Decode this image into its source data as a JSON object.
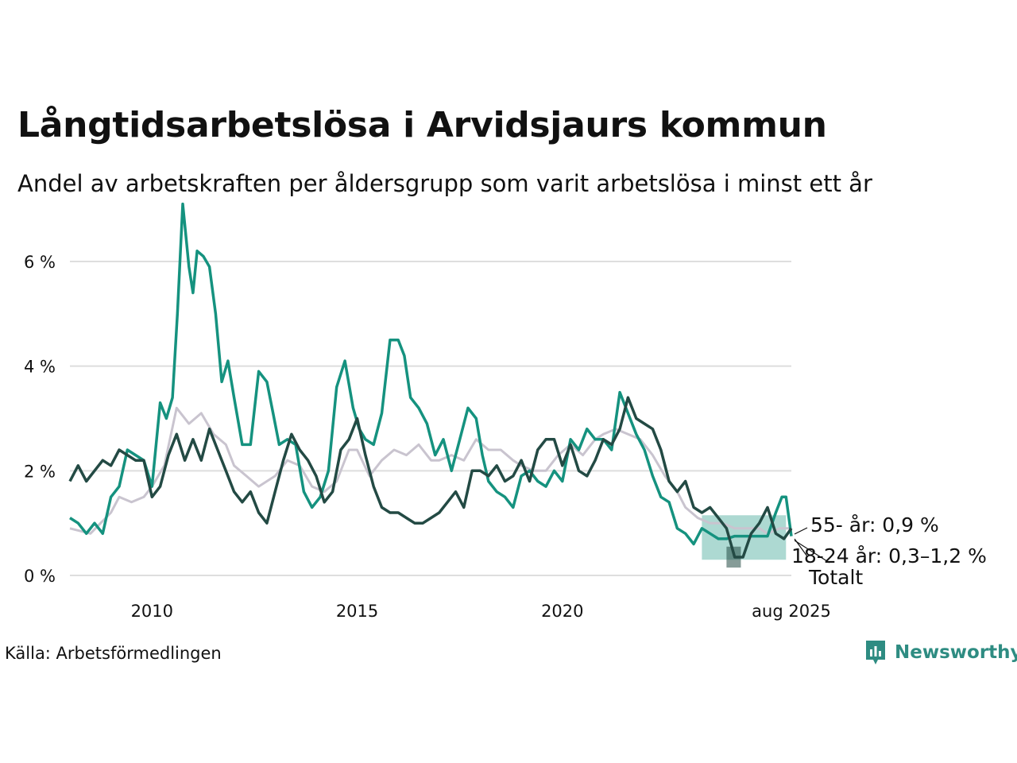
{
  "title": "Långtidsarbetslösa i Arvidsjaurs kommun",
  "subtitle": "Andel av arbetskraften per åldersgrupp som varit arbetslösa i minst ett år",
  "source": "Källa: Arbetsförmedlingen",
  "logo_text": "Newsworthy",
  "colors": {
    "youth": "#15927f",
    "older": "#234a44",
    "total": "#c9c4cf",
    "grid": "#dedede"
  },
  "chart_data": {
    "type": "line",
    "ylim": [
      0,
      7.2
    ],
    "y_ticks": [
      0,
      2,
      4,
      6
    ],
    "y_tick_labels": [
      "0 %",
      "2 %",
      "4 %",
      "6 %"
    ],
    "x_ticks": [
      2010,
      2015,
      2020,
      2025.58
    ],
    "x_tick_labels": [
      "2010",
      "2015",
      "2020",
      "aug 2025"
    ],
    "xlim": [
      2008.0,
      2025.58
    ],
    "series": [
      {
        "key": "total",
        "name": "Totalt",
        "color": "#c9c4cf",
        "x": [
          2008.0,
          2008.5,
          2009.0,
          2009.2,
          2009.5,
          2009.8,
          2010.0,
          2010.3,
          2010.6,
          2010.9,
          2011.2,
          2011.5,
          2011.8,
          2012.0,
          2012.3,
          2012.6,
          2013.0,
          2013.3,
          2013.6,
          2013.9,
          2014.2,
          2014.5,
          2014.8,
          2015.0,
          2015.3,
          2015.6,
          2015.9,
          2016.2,
          2016.5,
          2016.8,
          2017.0,
          2017.3,
          2017.6,
          2017.9,
          2018.2,
          2018.5,
          2018.8,
          2019.0,
          2019.3,
          2019.6,
          2019.9,
          2020.2,
          2020.5,
          2020.8,
          2021.0,
          2021.3,
          2021.6,
          2021.9,
          2022.2,
          2022.5,
          2022.8,
          2023.0,
          2023.3,
          2023.6,
          2023.9,
          2024.2,
          2024.5,
          2024.8,
          2025.0,
          2025.3,
          2025.58
        ],
        "y": [
          0.9,
          0.8,
          1.2,
          1.5,
          1.4,
          1.5,
          1.7,
          2.1,
          3.2,
          2.9,
          3.1,
          2.7,
          2.5,
          2.1,
          1.9,
          1.7,
          1.9,
          2.2,
          2.1,
          1.7,
          1.6,
          1.8,
          2.4,
          2.4,
          1.9,
          2.2,
          2.4,
          2.3,
          2.5,
          2.2,
          2.2,
          2.3,
          2.2,
          2.6,
          2.4,
          2.4,
          2.2,
          2.1,
          2.0,
          2.0,
          2.3,
          2.5,
          2.3,
          2.6,
          2.7,
          2.8,
          2.7,
          2.6,
          2.3,
          1.9,
          1.6,
          1.3,
          1.1,
          1.0,
          1.0,
          0.9,
          0.9,
          0.9,
          0.8,
          0.9,
          0.9
        ]
      },
      {
        "key": "youth",
        "name": "18-24 år",
        "color": "#15927f",
        "x": [
          2008.0,
          2008.2,
          2008.4,
          2008.6,
          2008.8,
          2009.0,
          2009.2,
          2009.4,
          2009.6,
          2009.8,
          2010.0,
          2010.2,
          2010.35,
          2010.5,
          2010.62,
          2010.75,
          2010.9,
          2011.0,
          2011.1,
          2011.25,
          2011.4,
          2011.55,
          2011.7,
          2011.85,
          2012.0,
          2012.2,
          2012.4,
          2012.6,
          2012.8,
          2012.95,
          2013.1,
          2013.3,
          2013.5,
          2013.7,
          2013.9,
          2014.1,
          2014.3,
          2014.5,
          2014.7,
          2014.9,
          2015.05,
          2015.2,
          2015.4,
          2015.6,
          2015.8,
          2016.0,
          2016.15,
          2016.3,
          2016.5,
          2016.7,
          2016.9,
          2017.1,
          2017.3,
          2017.5,
          2017.7,
          2017.9,
          2018.05,
          2018.2,
          2018.4,
          2018.6,
          2018.8,
          2019.0,
          2019.2,
          2019.4,
          2019.6,
          2019.8,
          2020.0,
          2020.2,
          2020.4,
          2020.6,
          2020.8,
          2021.0,
          2021.2,
          2021.4,
          2021.6,
          2021.8,
          2022.0,
          2022.2,
          2022.4,
          2022.6,
          2022.8,
          2023.0,
          2023.2,
          2023.4,
          2023.6,
          2023.8,
          2024.0,
          2024.2,
          2024.4,
          2024.6,
          2024.8,
          2025.0,
          2025.2,
          2025.35,
          2025.45,
          2025.58
        ],
        "y": [
          1.1,
          1.0,
          0.8,
          1.0,
          0.8,
          1.5,
          1.7,
          2.4,
          2.3,
          2.2,
          1.7,
          3.3,
          3.0,
          3.4,
          5.0,
          7.1,
          5.9,
          5.4,
          6.2,
          6.1,
          5.9,
          5.0,
          3.7,
          4.1,
          3.4,
          2.5,
          2.5,
          3.9,
          3.7,
          3.1,
          2.5,
          2.6,
          2.5,
          1.6,
          1.3,
          1.5,
          2.0,
          3.6,
          4.1,
          3.2,
          2.8,
          2.6,
          2.5,
          3.1,
          4.5,
          4.5,
          4.2,
          3.4,
          3.2,
          2.9,
          2.3,
          2.6,
          2.0,
          2.6,
          3.2,
          3.0,
          2.3,
          1.8,
          1.6,
          1.5,
          1.3,
          1.9,
          2.0,
          1.8,
          1.7,
          2.0,
          1.8,
          2.6,
          2.4,
          2.8,
          2.6,
          2.6,
          2.4,
          3.5,
          3.1,
          2.7,
          2.4,
          1.9,
          1.5,
          1.4,
          0.9,
          0.8,
          0.6,
          0.9,
          0.8,
          0.7,
          0.7,
          0.75,
          0.75,
          0.75,
          0.75,
          0.75,
          1.2,
          1.5,
          1.5,
          0.75
        ]
      },
      {
        "key": "older",
        "name": "55- år",
        "color": "#234a44",
        "x": [
          2008.0,
          2008.2,
          2008.4,
          2008.6,
          2008.8,
          2009.0,
          2009.2,
          2009.4,
          2009.6,
          2009.8,
          2010.0,
          2010.2,
          2010.4,
          2010.6,
          2010.8,
          2011.0,
          2011.2,
          2011.4,
          2011.6,
          2011.8,
          2012.0,
          2012.2,
          2012.4,
          2012.6,
          2012.8,
          2013.0,
          2013.2,
          2013.4,
          2013.6,
          2013.8,
          2014.0,
          2014.2,
          2014.4,
          2014.6,
          2014.8,
          2015.0,
          2015.2,
          2015.4,
          2015.6,
          2015.8,
          2016.0,
          2016.2,
          2016.4,
          2016.6,
          2016.8,
          2017.0,
          2017.2,
          2017.4,
          2017.6,
          2017.8,
          2018.0,
          2018.2,
          2018.4,
          2018.6,
          2018.8,
          2019.0,
          2019.2,
          2019.4,
          2019.6,
          2019.8,
          2020.0,
          2020.2,
          2020.4,
          2020.6,
          2020.8,
          2021.0,
          2021.2,
          2021.4,
          2021.6,
          2021.8,
          2022.0,
          2022.2,
          2022.4,
          2022.6,
          2022.8,
          2023.0,
          2023.2,
          2023.4,
          2023.6,
          2023.8,
          2024.0,
          2024.2,
          2024.4,
          2024.6,
          2024.8,
          2025.0,
          2025.2,
          2025.4,
          2025.58
        ],
        "y": [
          1.8,
          2.1,
          1.8,
          2.0,
          2.2,
          2.1,
          2.4,
          2.3,
          2.2,
          2.2,
          1.5,
          1.7,
          2.3,
          2.7,
          2.2,
          2.6,
          2.2,
          2.8,
          2.4,
          2.0,
          1.6,
          1.4,
          1.6,
          1.2,
          1.0,
          1.6,
          2.2,
          2.7,
          2.4,
          2.2,
          1.9,
          1.4,
          1.6,
          2.4,
          2.6,
          3.0,
          2.3,
          1.7,
          1.3,
          1.2,
          1.2,
          1.1,
          1.0,
          1.0,
          1.1,
          1.2,
          1.4,
          1.6,
          1.3,
          2.0,
          2.0,
          1.9,
          2.1,
          1.8,
          1.9,
          2.2,
          1.8,
          2.4,
          2.6,
          2.6,
          2.1,
          2.5,
          2.0,
          1.9,
          2.2,
          2.6,
          2.5,
          2.8,
          3.4,
          3.0,
          2.9,
          2.8,
          2.4,
          1.8,
          1.6,
          1.8,
          1.3,
          1.2,
          1.3,
          1.1,
          0.9,
          0.35,
          0.35,
          0.8,
          1.0,
          1.3,
          0.8,
          0.7,
          0.9
        ]
      }
    ],
    "bands": [
      {
        "key": "youth",
        "x_start": 2023.4,
        "x_end": 2025.45,
        "y_low": 0.3,
        "y_high": 1.15,
        "color": "#15927f"
      },
      {
        "key": "older",
        "x_start": 2024.0,
        "x_end": 2024.35,
        "y_low": 0.15,
        "y_high": 0.55,
        "color": "#234a44"
      }
    ],
    "labels": {
      "older": "55- år: 0,9 %",
      "youth": "18-24 år: 0,3–1,2 %",
      "total": "Totalt"
    }
  }
}
